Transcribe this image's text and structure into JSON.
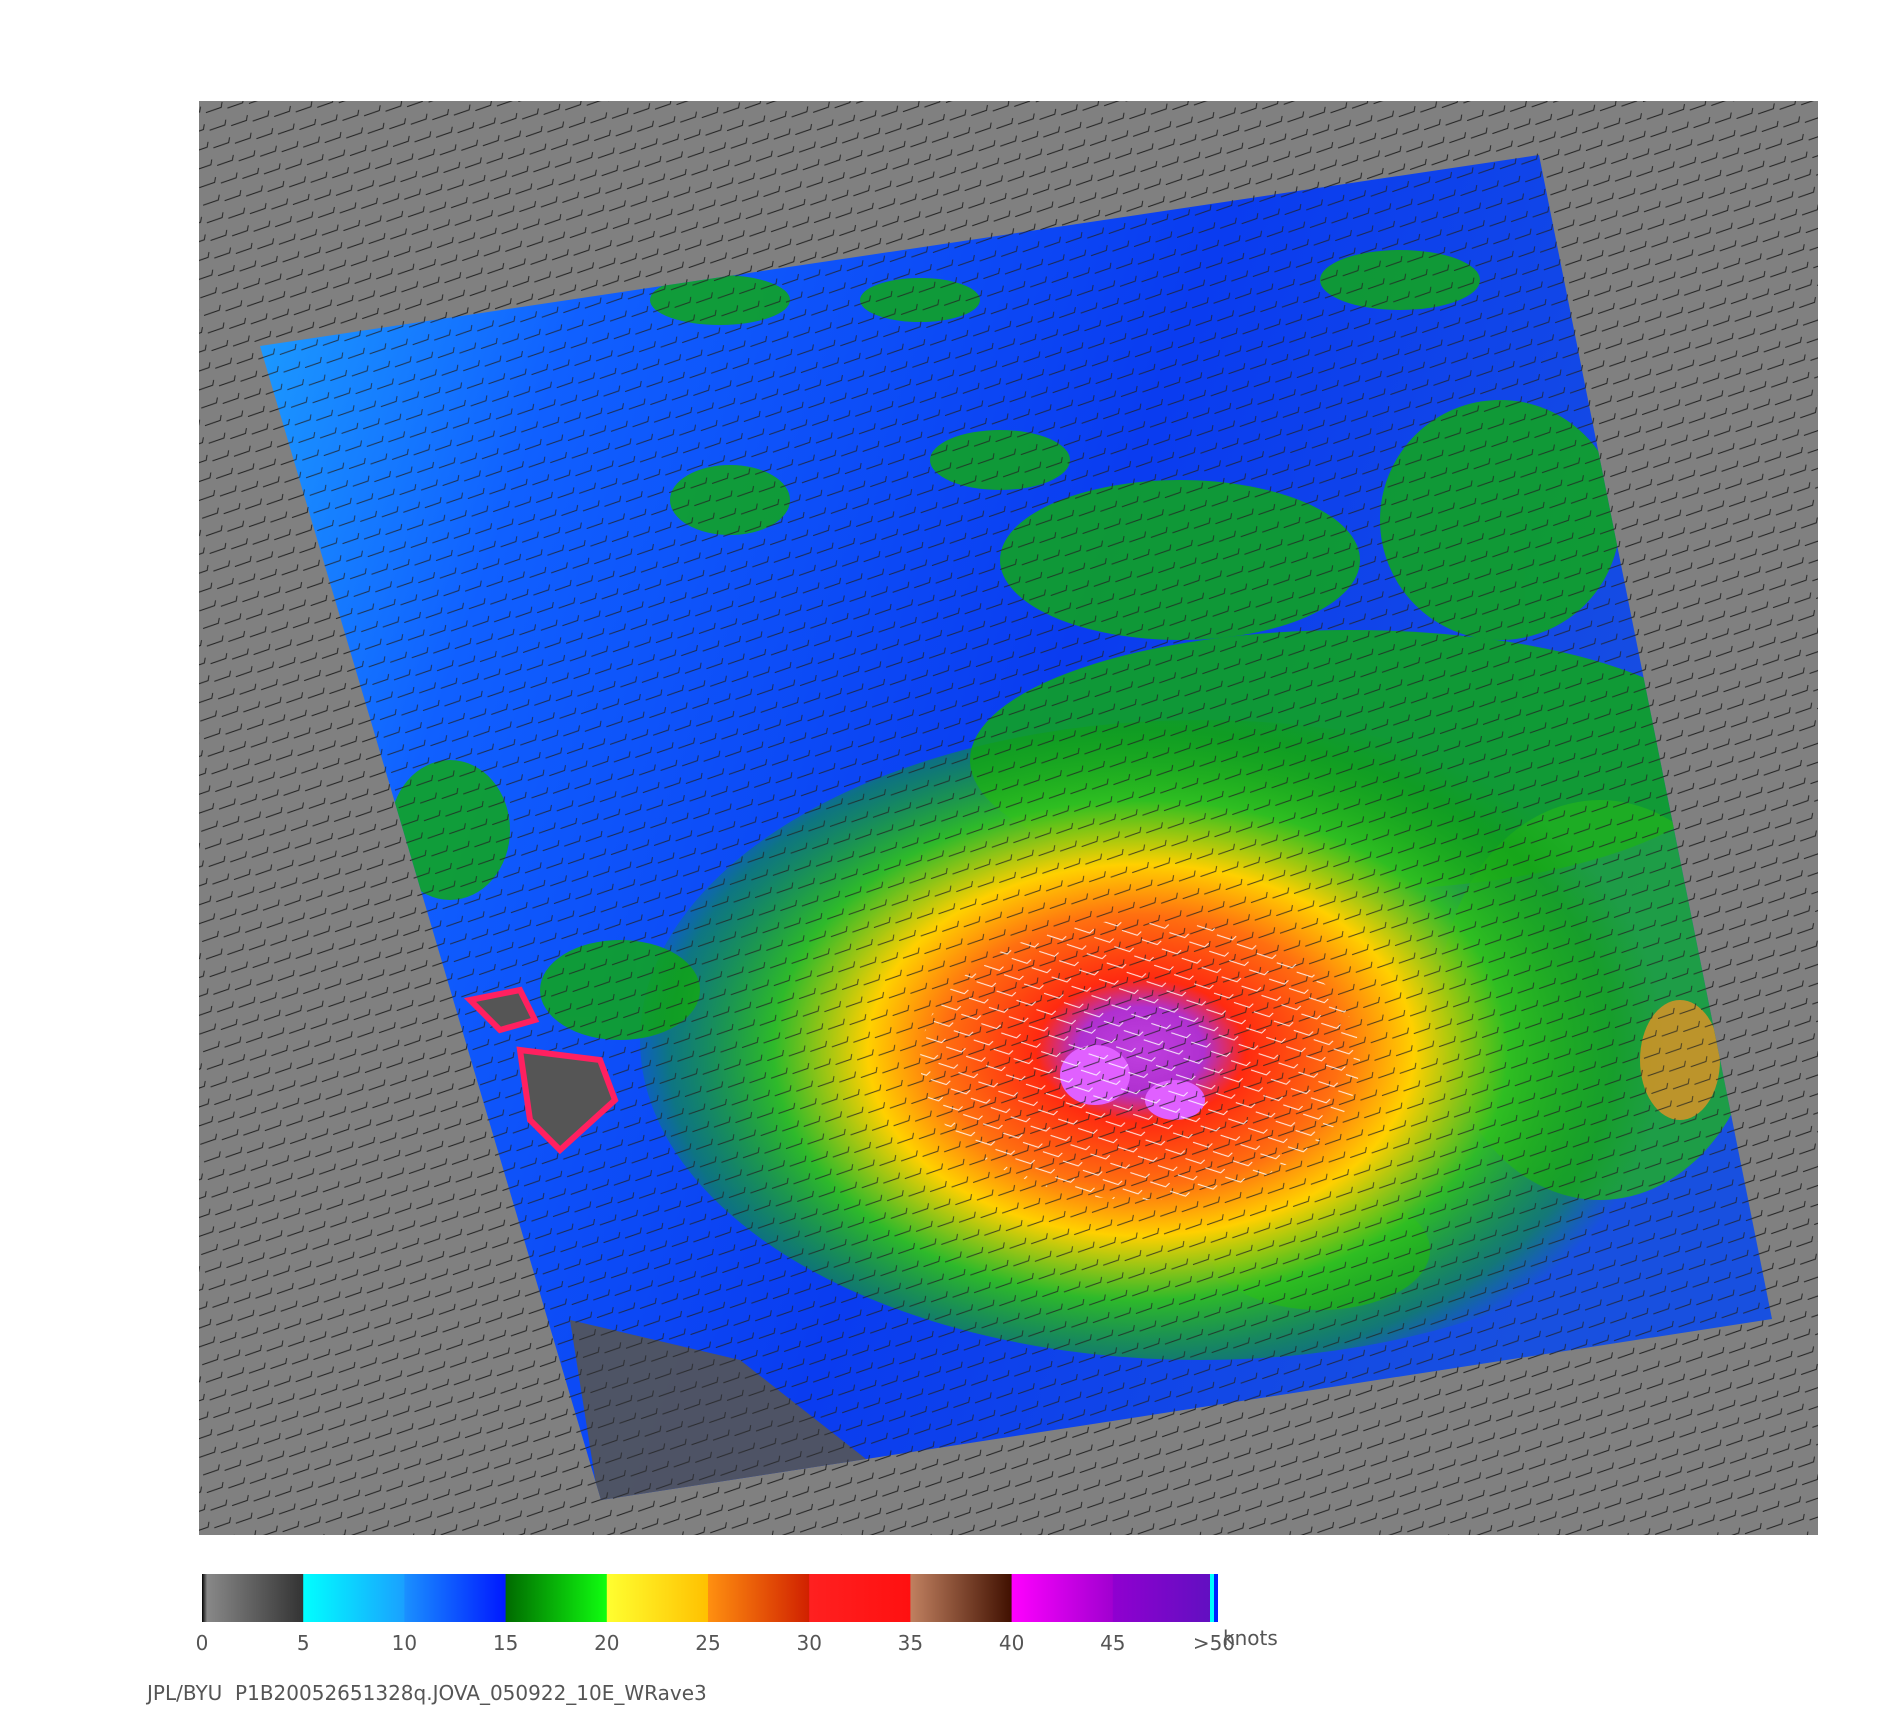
{
  "colorbar": {
    "ticks": [
      "0",
      "5",
      "10",
      "15",
      "20",
      "25",
      "30",
      "35",
      "40",
      "45",
      ">50"
    ],
    "unit": "knots"
  },
  "caption": "JPL/BYU  P1B20052651328q.JOVA_050922_10E_WRave3"
}
